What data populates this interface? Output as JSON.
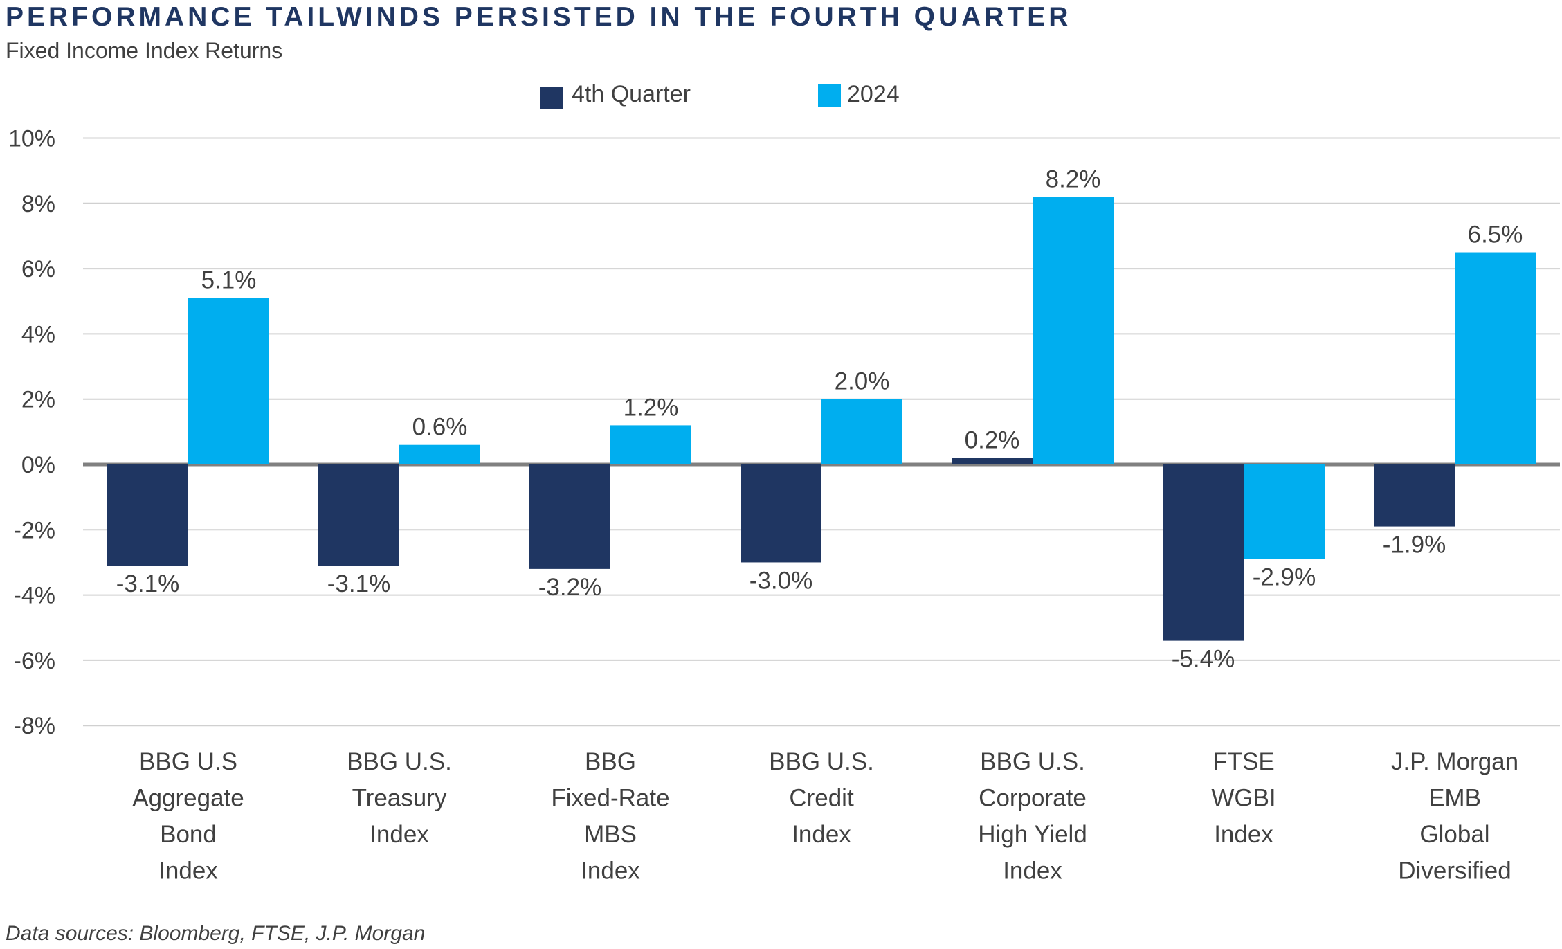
{
  "colors": {
    "q4": "#1f3662",
    "y2024": "#00aeef",
    "title": "#1f3662",
    "text": "#404040",
    "grid": "#d0d0d0",
    "zero": "#808080"
  },
  "chart_data": {
    "type": "bar",
    "title": "PERFORMANCE TAILWINDS PERSISTED IN THE FOURTH QUARTER",
    "subtitle": "Fixed Income Index Returns",
    "source": "Data sources: Bloomberg, FTSE, J.P. Morgan",
    "legend_position": "top",
    "grid": true,
    "ylim": [
      -8,
      10
    ],
    "yticks": [
      -8,
      -6,
      -4,
      -2,
      0,
      2,
      4,
      6,
      8,
      10
    ],
    "ytick_labels": [
      "-8%",
      "-6%",
      "-4%",
      "-2%",
      "0%",
      "2%",
      "4%",
      "6%",
      "8%",
      "10%"
    ],
    "categories": [
      [
        "BBG U.S",
        "Aggregate",
        "Bond",
        "Index"
      ],
      [
        "BBG U.S.",
        "Treasury",
        "Index"
      ],
      [
        "BBG",
        "Fixed-Rate",
        "MBS",
        "Index"
      ],
      [
        "BBG U.S.",
        "Credit",
        "Index"
      ],
      [
        "BBG U.S.",
        "Corporate",
        "High Yield",
        "Index"
      ],
      [
        "FTSE",
        "WGBI",
        "Index"
      ],
      [
        "J.P. Morgan",
        "EMB",
        "Global",
        "Diversified"
      ]
    ],
    "series": [
      {
        "name": "4th Quarter",
        "values": [
          -3.1,
          -3.1,
          -3.2,
          -3.0,
          0.2,
          -5.4,
          -1.9
        ],
        "labels": [
          "-3.1%",
          "-3.1%",
          "-3.2%",
          "-3.0%",
          "0.2%",
          "-5.4%",
          "-1.9%"
        ]
      },
      {
        "name": "2024",
        "values": [
          5.1,
          0.6,
          1.2,
          2.0,
          8.2,
          -2.9,
          6.5
        ],
        "labels": [
          "5.1%",
          "0.6%",
          "1.2%",
          "2.0%",
          "8.2%",
          "-2.9%",
          "6.5%"
        ]
      }
    ]
  }
}
